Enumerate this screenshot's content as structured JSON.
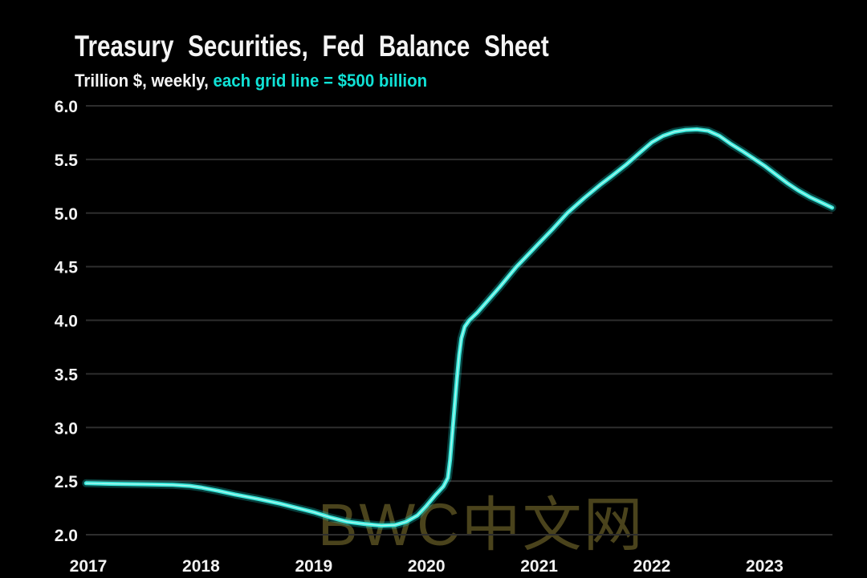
{
  "header": {
    "title": "Treasury Securities, Fed Balance Sheet",
    "subtitle_plain": "Trillion $, weekly, ",
    "subtitle_accent": "each grid line = $500 billion"
  },
  "watermark": {
    "text": "BWC中文网",
    "color": "#4a431c"
  },
  "colors": {
    "background": "#000000",
    "label": "#f2f2f2",
    "grid": "#2e2e2e",
    "line": "#38e8db",
    "line_glow": "#19e0d6",
    "line_core": "#d9fff6",
    "accent_text": "#10e2d6"
  },
  "chart_data": {
    "type": "line",
    "title": "Treasury Securities, Fed Balance Sheet",
    "subtitle": "Trillion $, weekly, each grid line = $500 billion",
    "unit": "Trillion $",
    "frequency": "weekly",
    "grid": true,
    "legend": false,
    "xlim": [
      2016.98,
      2023.62
    ],
    "ylim": [
      2.0,
      6.0
    ],
    "x_ticks": [
      {
        "value": 2017,
        "label": "2017"
      },
      {
        "value": 2018,
        "label": "2018"
      },
      {
        "value": 2019,
        "label": "2019"
      },
      {
        "value": 2020,
        "label": "2020"
      },
      {
        "value": 2021,
        "label": "2021"
      },
      {
        "value": 2022,
        "label": "2022"
      },
      {
        "value": 2023,
        "label": "2023"
      }
    ],
    "y_ticks": [
      {
        "value": 2.0,
        "label": "2.0"
      },
      {
        "value": 2.5,
        "label": "2.5"
      },
      {
        "value": 3.0,
        "label": "3.0"
      },
      {
        "value": 3.5,
        "label": "3.5"
      },
      {
        "value": 4.0,
        "label": "4.0"
      },
      {
        "value": 4.5,
        "label": "4.5"
      },
      {
        "value": 5.0,
        "label": "5.0"
      },
      {
        "value": 5.5,
        "label": "5.5"
      },
      {
        "value": 6.0,
        "label": "6.0"
      }
    ],
    "series": [
      {
        "name": "Treasury Securities",
        "points": [
          [
            2016.98,
            2.48
          ],
          [
            2017.2,
            2.475
          ],
          [
            2017.5,
            2.47
          ],
          [
            2017.75,
            2.465
          ],
          [
            2017.9,
            2.455
          ],
          [
            2018.0,
            2.44
          ],
          [
            2018.15,
            2.41
          ],
          [
            2018.3,
            2.375
          ],
          [
            2018.5,
            2.335
          ],
          [
            2018.7,
            2.29
          ],
          [
            2018.85,
            2.25
          ],
          [
            2019.0,
            2.21
          ],
          [
            2019.15,
            2.16
          ],
          [
            2019.3,
            2.12
          ],
          [
            2019.45,
            2.1
          ],
          [
            2019.6,
            2.085
          ],
          [
            2019.72,
            2.09
          ],
          [
            2019.82,
            2.12
          ],
          [
            2019.92,
            2.18
          ],
          [
            2020.0,
            2.27
          ],
          [
            2020.08,
            2.37
          ],
          [
            2020.15,
            2.45
          ],
          [
            2020.19,
            2.53
          ],
          [
            2020.21,
            2.7
          ],
          [
            2020.23,
            2.95
          ],
          [
            2020.25,
            3.2
          ],
          [
            2020.27,
            3.45
          ],
          [
            2020.29,
            3.67
          ],
          [
            2020.31,
            3.83
          ],
          [
            2020.34,
            3.94
          ],
          [
            2020.38,
            4.0
          ],
          [
            2020.45,
            4.07
          ],
          [
            2020.55,
            4.19
          ],
          [
            2020.65,
            4.31
          ],
          [
            2020.8,
            4.5
          ],
          [
            2020.9,
            4.61
          ],
          [
            2021.0,
            4.72
          ],
          [
            2021.12,
            4.85
          ],
          [
            2021.25,
            5.0
          ],
          [
            2021.4,
            5.14
          ],
          [
            2021.55,
            5.27
          ],
          [
            2021.65,
            5.35
          ],
          [
            2021.77,
            5.45
          ],
          [
            2021.9,
            5.57
          ],
          [
            2022.0,
            5.66
          ],
          [
            2022.1,
            5.72
          ],
          [
            2022.2,
            5.757
          ],
          [
            2022.3,
            5.775
          ],
          [
            2022.4,
            5.78
          ],
          [
            2022.5,
            5.767
          ],
          [
            2022.6,
            5.72
          ],
          [
            2022.7,
            5.645
          ],
          [
            2022.8,
            5.58
          ],
          [
            2022.9,
            5.51
          ],
          [
            2023.0,
            5.44
          ],
          [
            2023.1,
            5.36
          ],
          [
            2023.2,
            5.28
          ],
          [
            2023.3,
            5.21
          ],
          [
            2023.4,
            5.15
          ],
          [
            2023.5,
            5.1
          ],
          [
            2023.6,
            5.05
          ]
        ]
      }
    ]
  }
}
